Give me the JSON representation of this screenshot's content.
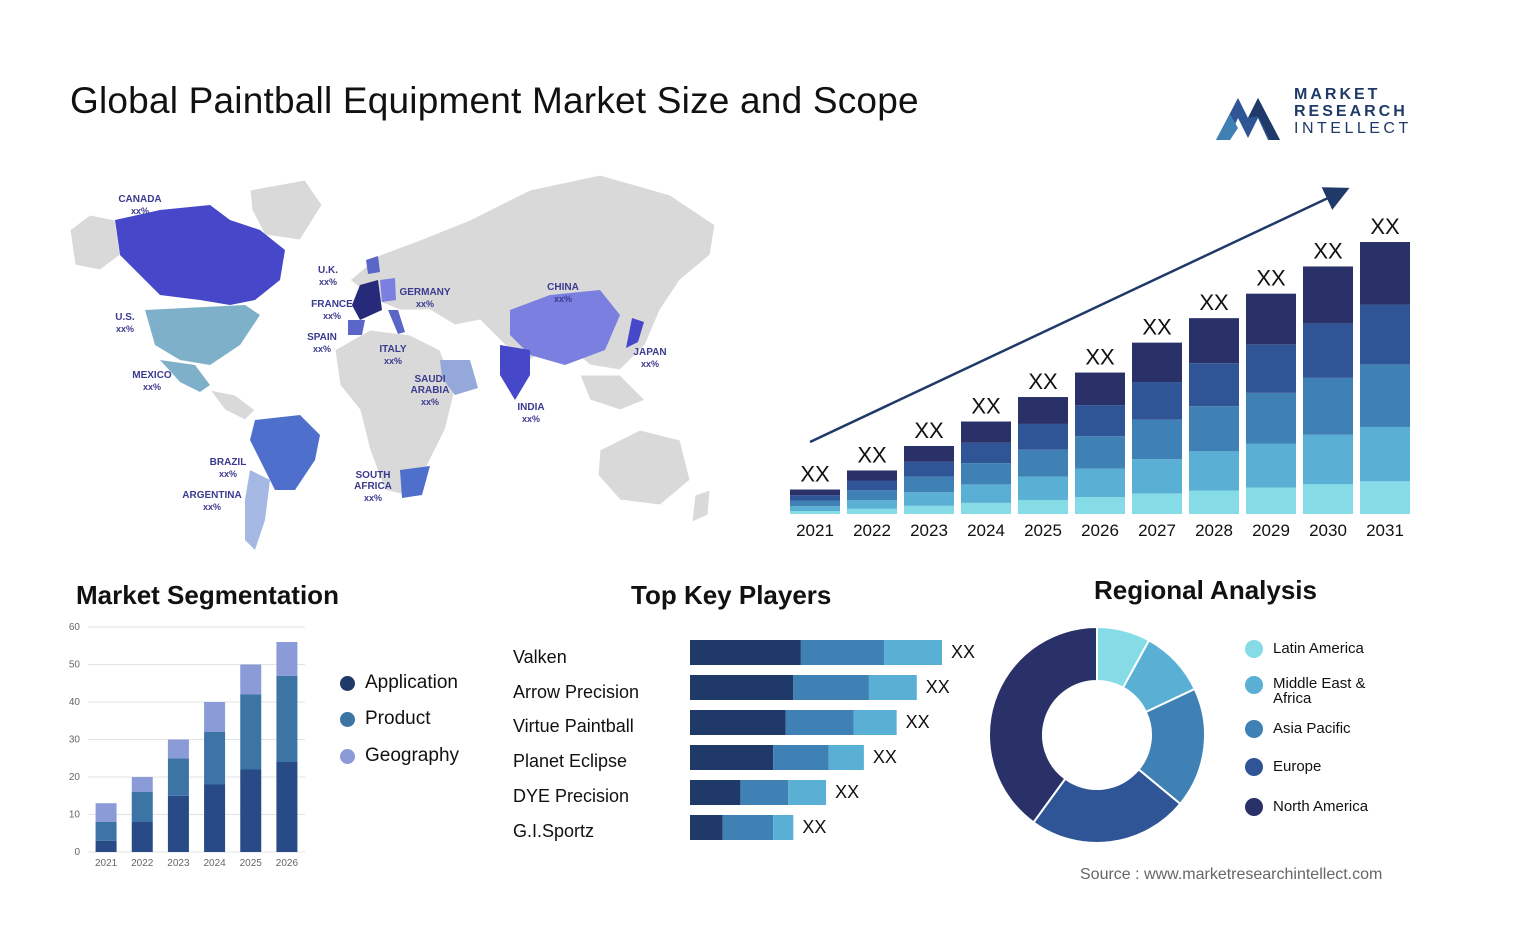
{
  "header": {
    "title": "Global Paintball Equipment Market Size and Scope",
    "logo_line1": "MARKET",
    "logo_line2": "RESEARCH",
    "logo_line3": "INTELLECT"
  },
  "map": {
    "labels": [
      {
        "name": "CANADA",
        "value": "xx%"
      },
      {
        "name": "U.S.",
        "value": "xx%"
      },
      {
        "name": "MEXICO",
        "value": "xx%"
      },
      {
        "name": "BRAZIL",
        "value": "xx%"
      },
      {
        "name": "ARGENTINA",
        "value": "xx%"
      },
      {
        "name": "U.K.",
        "value": "xx%"
      },
      {
        "name": "FRANCE",
        "value": "xx%"
      },
      {
        "name": "SPAIN",
        "value": "xx%"
      },
      {
        "name": "GERMANY",
        "value": "xx%"
      },
      {
        "name": "ITALY",
        "value": "xx%"
      },
      {
        "name": "SAUDI ARABIA",
        "value": "xx%"
      },
      {
        "name": "SOUTH AFRICA",
        "value": "xx%"
      },
      {
        "name": "CHINA",
        "value": "xx%"
      },
      {
        "name": "INDIA",
        "value": "xx%"
      },
      {
        "name": "JAPAN",
        "value": "xx%"
      }
    ]
  },
  "sections": {
    "segmentation": "Market Segmentation",
    "players": "Top Key Players",
    "regional": "Regional Analysis"
  },
  "source": "Source : www.marketresearchintellect.com",
  "colors": {
    "navy": "#2a3168",
    "dark_blue": "#2f5596",
    "mid_blue": "#3f81b4",
    "light_blue": "#5ab0d4",
    "cyan": "#86dce6"
  },
  "chart_data": [
    {
      "type": "bar",
      "name": "growth",
      "stacked": true,
      "categories": [
        "2021",
        "2022",
        "2023",
        "2024",
        "2025",
        "2026",
        "2027",
        "2028",
        "2029",
        "2030",
        "2031"
      ],
      "totals": [
        9,
        16,
        25,
        34,
        43,
        52,
        63,
        72,
        81,
        91,
        100
      ],
      "value_labels": [
        "XX",
        "XX",
        "XX",
        "XX",
        "XX",
        "XX",
        "XX",
        "XX",
        "XX",
        "XX",
        "XX"
      ],
      "trend_arrow": true,
      "grid": false
    },
    {
      "type": "bar",
      "name": "segmentation",
      "stacked": true,
      "categories": [
        "2021",
        "2022",
        "2023",
        "2024",
        "2025",
        "2026"
      ],
      "series": [
        {
          "name": "Application",
          "values": [
            3,
            8,
            15,
            18,
            22,
            24
          ],
          "color": "#284a86"
        },
        {
          "name": "Product",
          "values": [
            5,
            8,
            10,
            14,
            20,
            23
          ],
          "color": "#3d74a6"
        },
        {
          "name": "Geography",
          "values": [
            5,
            4,
            5,
            8,
            8,
            9
          ],
          "color": "#8a9bd8"
        }
      ],
      "ylim": [
        0,
        60
      ],
      "yticks": [
        0,
        10,
        20,
        30,
        40,
        50,
        60
      ],
      "grid": true
    },
    {
      "type": "bar",
      "name": "players",
      "orientation": "horizontal",
      "stacked": true,
      "categories": [
        "Valken",
        "Arrow Precision",
        "Virtue Paintball",
        "Planet Eclipse",
        "DYE Precision",
        "G.I.Sportz"
      ],
      "series": [
        {
          "values": [
            44,
            41,
            38,
            33,
            20,
            13
          ],
          "color": "#1f3a68"
        },
        {
          "values": [
            33,
            30,
            27,
            22,
            19,
            20
          ],
          "color": "#3f81b4"
        },
        {
          "values": [
            23,
            19,
            17,
            14,
            15,
            8
          ],
          "color": "#5ab0d4"
        }
      ],
      "value_labels": [
        "XX",
        "XX",
        "XX",
        "XX",
        "XX",
        "XX"
      ]
    },
    {
      "type": "pie",
      "name": "regional",
      "donut": true,
      "labels": [
        "Latin America",
        "Middle East & Africa",
        "Asia Pacific",
        "Europe",
        "North America"
      ],
      "values": [
        8,
        10,
        18,
        24,
        40
      ],
      "colors": [
        "#86dce6",
        "#5ab0d4",
        "#3f81b4",
        "#2f5596",
        "#2a3168"
      ]
    }
  ]
}
